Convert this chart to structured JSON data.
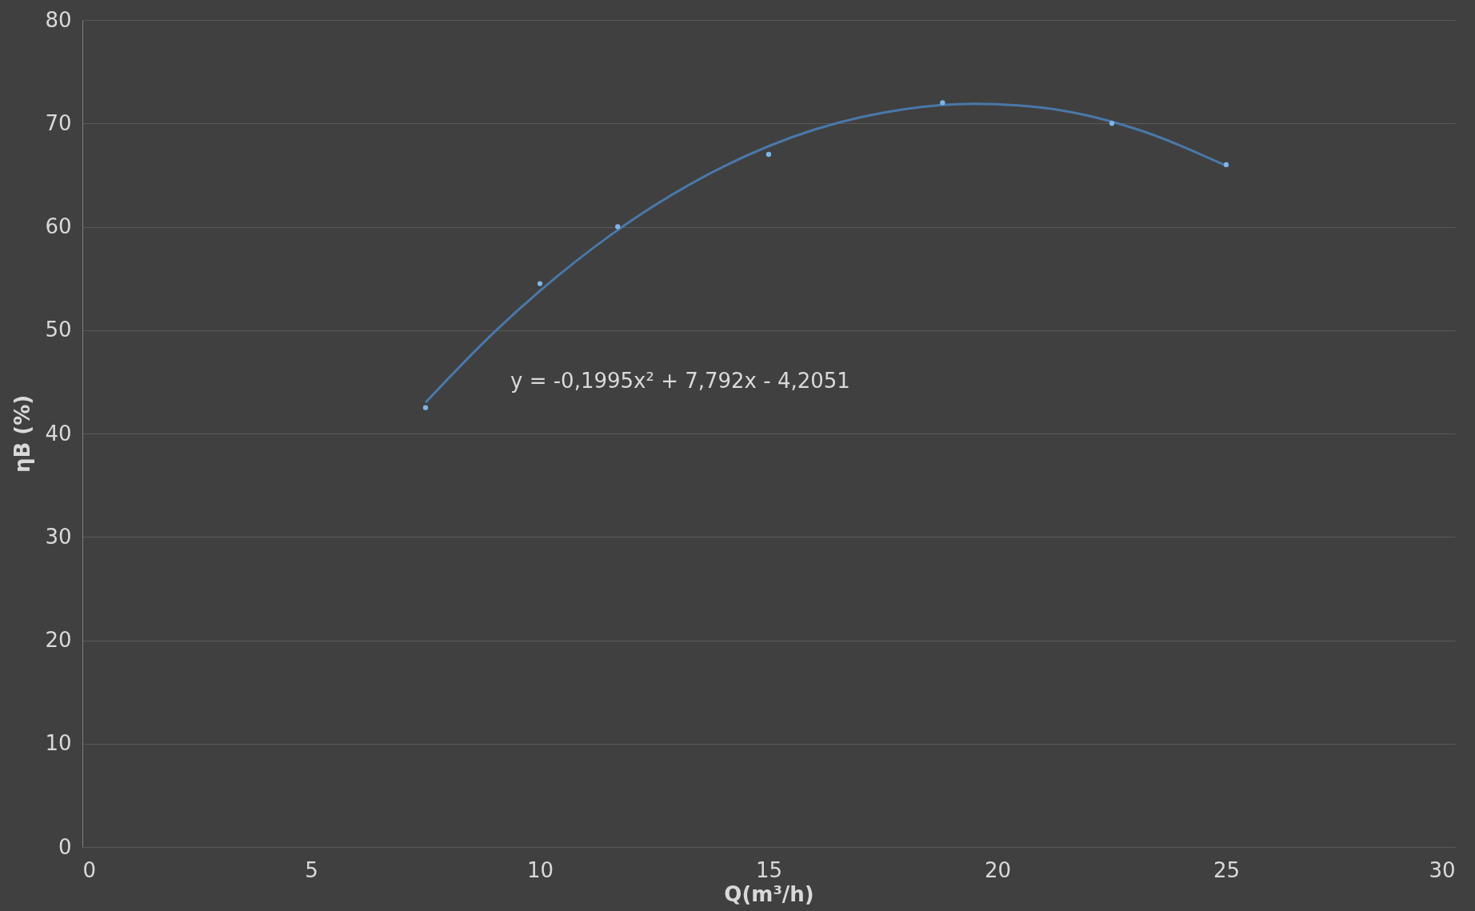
{
  "chart_data": {
    "type": "scatter",
    "xlabel": "Q(m³/h)",
    "ylabel": "ηB (%)",
    "xlim": [
      0,
      30
    ],
    "xticks": [
      0,
      5,
      10,
      15,
      20,
      25,
      30
    ],
    "ylim": [
      0,
      80
    ],
    "yticks": [
      0,
      10,
      20,
      30,
      40,
      50,
      60,
      70,
      80
    ],
    "grid": "y",
    "legend": false,
    "marker": "circle",
    "annotations": [
      "y = -0,1995x² + 7,792x - 4,2051"
    ],
    "series": [
      {
        "type": "line",
        "color": "#4a78a8",
        "marker": "none",
        "x": [
          7.5,
          9,
          10,
          12,
          14,
          16,
          18,
          19.5,
          21,
          23,
          25
        ],
        "values": [
          43.0,
          49.8,
          53.8,
          60.6,
          65.8,
          69.4,
          71.4,
          71.9,
          71.5,
          69.5,
          65.9
        ]
      },
      {
        "color": "#7fb4e8",
        "x": [
          7.5,
          10,
          11.7,
          15,
          18.8,
          22.5,
          25
        ],
        "values": [
          42.5,
          54.5,
          60,
          67,
          72,
          70,
          66
        ]
      }
    ]
  }
}
